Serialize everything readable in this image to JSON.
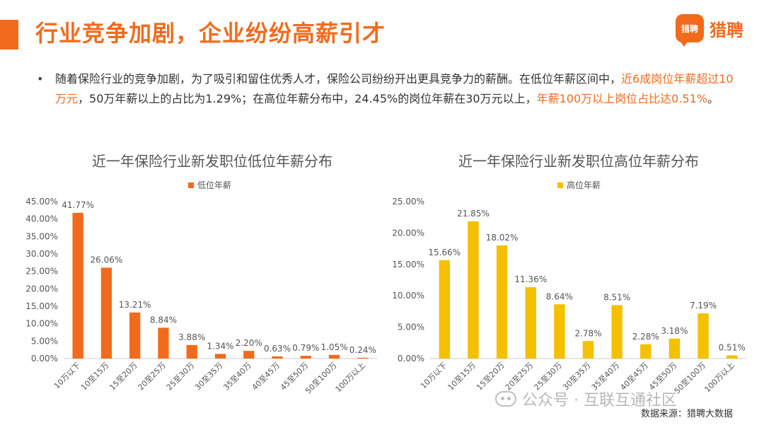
{
  "header": {
    "title": "行业竞争加剧，企业纷纷高薪引才",
    "logo_badge": "猎聘",
    "logo_text": "猎聘"
  },
  "summary": {
    "bullet": "•",
    "part1": "随着保险行业的竞争加剧，为了吸引和留住优秀人才，保险公司纷纷开出更具竞争力的薪酬。在低位年薪区间中，",
    "highlight1": "近6成岗位年薪超过10万元",
    "part2": "，50万年薪以上的占比为1.29%；在高位年薪分布中，24.45%的岗位年薪在30万元以上，",
    "highlight2": "年薪100万以上岗位占比达0.51%",
    "part3": "。"
  },
  "colors": {
    "accent": "#f26b1d",
    "low_bar": "#f26b1d",
    "high_bar": "#f5c000",
    "axis": "#cccccc",
    "text": "#555555"
  },
  "chart_data": [
    {
      "type": "bar",
      "title": "近一年保险行业新发职位低位年薪分布",
      "categories": [
        "10万以下",
        "10至15万",
        "15至20万",
        "20至25万",
        "25至30万",
        "30至35万",
        "35至40万",
        "40至45万",
        "45至50万",
        "50至100万",
        "100万以上"
      ],
      "series": [
        {
          "name": "低位年薪",
          "values": [
            41.77,
            26.06,
            13.21,
            8.84,
            3.88,
            1.34,
            2.2,
            0.63,
            0.79,
            1.05,
            0.24
          ],
          "labels": [
            "41.77%",
            "26.06%",
            "13.21%",
            "8.84%",
            "3.88%",
            "1.34%",
            "2.20%",
            "0.63%",
            "0.79%",
            "1.05%",
            "0.24%"
          ]
        }
      ],
      "ylim": [
        0,
        45
      ],
      "yticks": [
        "0.00%",
        "5.00%",
        "10.00%",
        "15.00%",
        "20.00%",
        "25.00%",
        "30.00%",
        "35.00%",
        "40.00%",
        "45.00%"
      ],
      "legend": "top-center",
      "grid": false
    },
    {
      "type": "bar",
      "title": "近一年保险行业新发职位高位年薪分布",
      "categories": [
        "10万以下",
        "10至15万",
        "15至20万",
        "20至25万",
        "25至30万",
        "30至35万",
        "35至40万",
        "40至45万",
        "45至50万",
        "50至100万",
        "100万以上"
      ],
      "series": [
        {
          "name": "高位年薪",
          "values": [
            15.66,
            21.85,
            18.02,
            11.36,
            8.64,
            2.78,
            8.51,
            2.28,
            3.18,
            7.19,
            0.51
          ],
          "labels": [
            "15.66%",
            "21.85%",
            "18.02%",
            "11.36%",
            "8.64%",
            "2.78%",
            "8.51%",
            "2.28%",
            "3.18%",
            "7.19%",
            "0.51%"
          ]
        }
      ],
      "ylim": [
        0,
        25
      ],
      "yticks": [
        "0.00%",
        "5.00%",
        "10.00%",
        "15.00%",
        "20.00%",
        "25.00%"
      ],
      "legend": "top-center",
      "grid": false
    }
  ],
  "footer": {
    "watermark": "公众号 · 互联互通社区",
    "source": "数据来源：猎聘大数据"
  }
}
